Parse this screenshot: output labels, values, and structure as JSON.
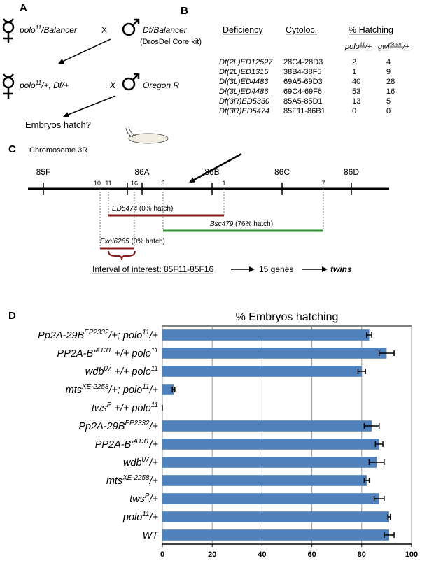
{
  "panel_letters": [
    "A",
    "B",
    "C",
    "D"
  ],
  "cross": {
    "parent1": [
      "polo",
      "11",
      "/Balancer"
    ],
    "x1": "X",
    "parent2": "Df/Balancer",
    "kit": "(DrosDel Core kit)",
    "f1": [
      "polo",
      "11",
      "/+, Df/+"
    ],
    "x2": "X",
    "parent3": "Oregon R",
    "question": "Embryos hatch?"
  },
  "table": {
    "headers": [
      "Deficiency",
      "Cytoloc.",
      "% Hatching"
    ],
    "subheaders": [
      [
        "polo",
        "11",
        "/+"
      ],
      [
        "gwl",
        "Scant",
        "/+"
      ]
    ],
    "rows": [
      [
        "Df(2L)ED12527",
        "28C4-28D3",
        2,
        4
      ],
      [
        "Df(2L)ED1315",
        "38B4-38F5",
        1,
        9
      ],
      [
        "Df(3L)ED4483",
        "69A5-69D3",
        40,
        28
      ],
      [
        "Df(3L)ED4486",
        "69C4-69F6",
        53,
        16
      ],
      [
        "Df(3R)ED5330",
        "85A5-85D1",
        13,
        5
      ],
      [
        "Df(3R)ED5474",
        "85F11-86B1",
        0,
        0
      ]
    ]
  },
  "map": {
    "title": "Chromosome 3R",
    "bands": [
      "85F",
      "86A",
      "86B",
      "86C",
      "86D"
    ],
    "breakpoints": [
      "10",
      "11",
      "16",
      "3",
      "1",
      "7"
    ],
    "deficiencies": [
      {
        "name": "ED5474",
        "note": " (0% hatch)"
      },
      {
        "name": "Bsc479",
        "note": " (76% hatch)"
      },
      {
        "name": "Exel6265",
        "note": " (0% hatch)"
      }
    ],
    "interval": "Interval of interest: 85F11-85F16",
    "genes": "15 genes",
    "gene": "twins"
  },
  "chart_data": {
    "type": "bar",
    "orientation": "horizontal",
    "title": "% Embryos hatching",
    "categories": [
      [
        "Pp2A-29B",
        "EP2332",
        "/+; polo",
        "11",
        "/+"
      ],
      [
        "PP2A-B’",
        "A131",
        " +/+ polo",
        "11"
      ],
      [
        "wdb",
        "07",
        " +/+ polo",
        "11"
      ],
      [
        "mts",
        "XE-2258",
        "/+; polo",
        "11",
        "/+"
      ],
      [
        "tws",
        "P",
        " +/+ polo",
        "11"
      ],
      [
        "Pp2A-29B",
        "EP2332",
        "/+"
      ],
      [
        "PP2A-B’",
        "A131",
        "/+"
      ],
      [
        "wdb",
        "07",
        "/+"
      ],
      [
        "mts",
        "XE-2258",
        "/+"
      ],
      [
        "tws",
        "P",
        "/+"
      ],
      [
        "polo",
        "11",
        "/+"
      ],
      [
        "WT"
      ]
    ],
    "values": [
      83,
      90,
      80,
      4.5,
      0,
      84,
      87,
      86,
      82,
      87,
      91,
      91
    ],
    "errors": [
      1,
      3,
      1.5,
      0.5,
      0,
      3,
      1.5,
      3,
      1,
      2,
      0.5,
      2
    ],
    "color": "#4f81bd",
    "xlim": [
      0,
      100
    ],
    "xticks": [
      0,
      20,
      40,
      60,
      80,
      100
    ],
    "grid": true
  }
}
